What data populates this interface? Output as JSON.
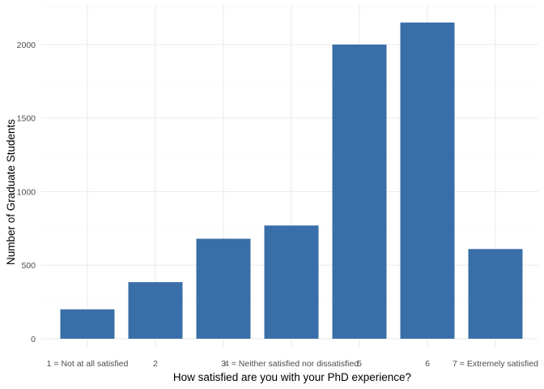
{
  "chart_data": {
    "type": "bar",
    "title": "",
    "xlabel": "How satisfied are you with your PhD experience?",
    "ylabel": "Number of Graduate Students",
    "categories": [
      "1 = Not at all satisfied",
      "2",
      "3",
      "4 = Neither satisfied nor dissatisfied",
      "5",
      "6",
      "7 = Extremely satisfied"
    ],
    "values": [
      200,
      385,
      680,
      770,
      2000,
      2150,
      610
    ],
    "ylim": [
      0,
      2250
    ],
    "yticks": [
      0,
      500,
      1000,
      1500,
      2000
    ],
    "grid": true,
    "legend": "none",
    "bar_color": "#3A6EA8"
  }
}
